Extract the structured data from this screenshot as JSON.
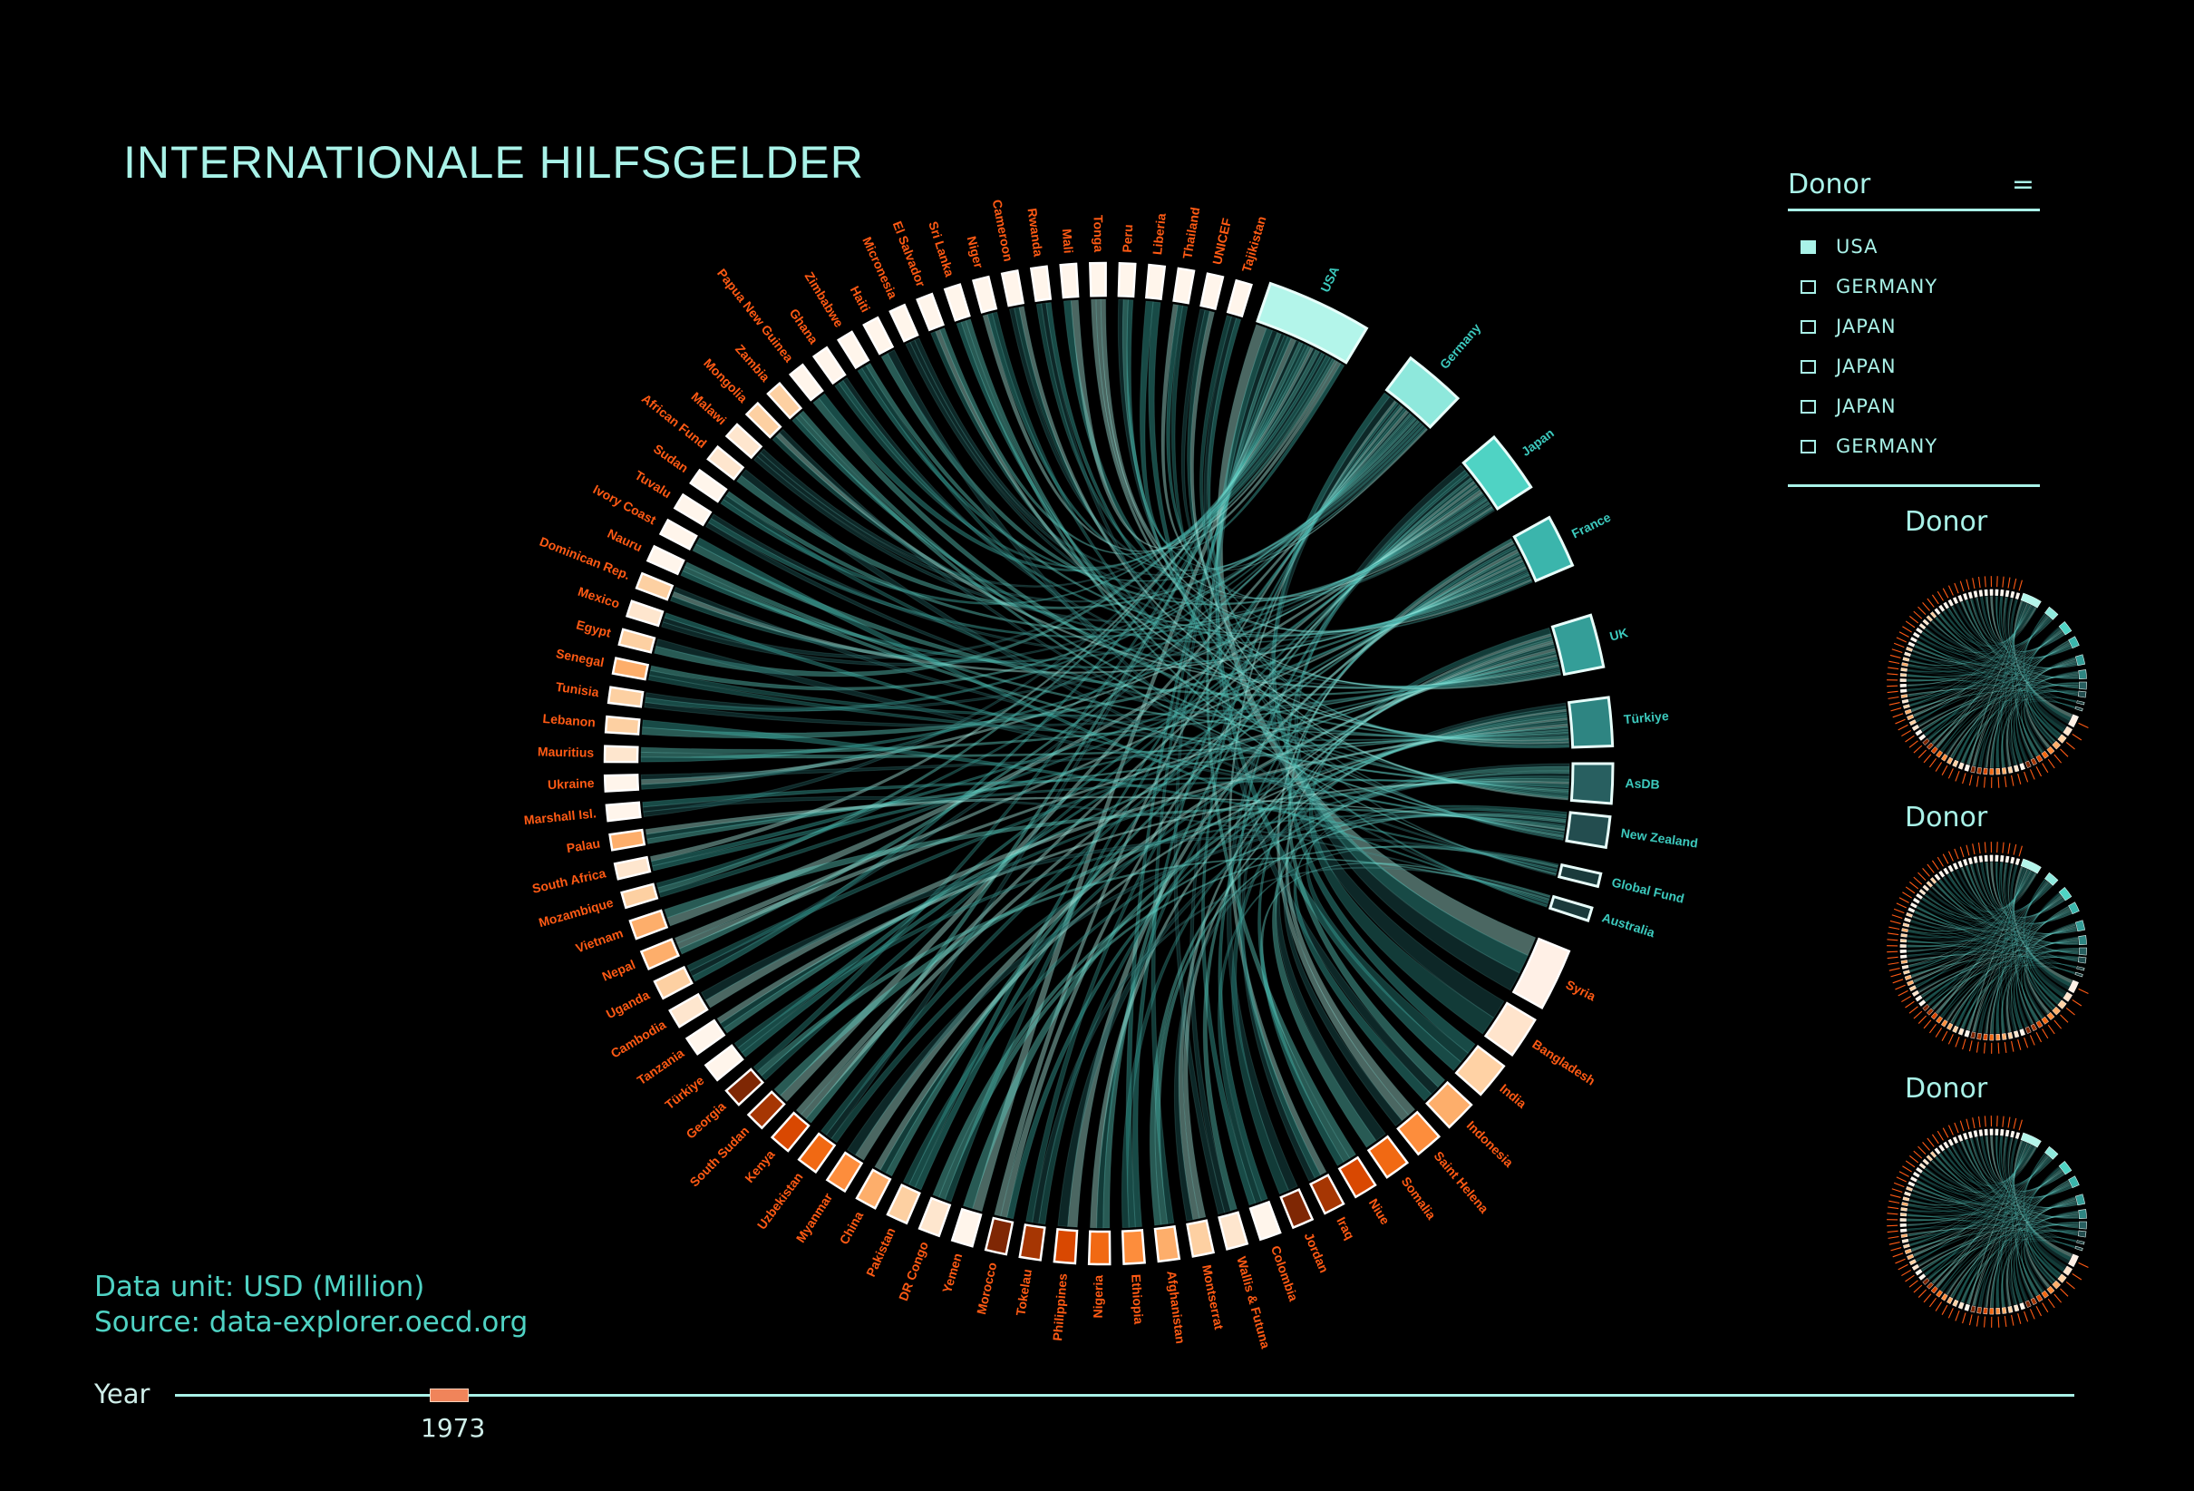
{
  "title": "INTERNATIONALE HILFSGELDER",
  "legend": {
    "header": "Donor",
    "menu_icon": "hamburger-menu-icon",
    "menu_glyph": "=",
    "items": [
      {
        "label": "USA",
        "checked": true
      },
      {
        "label": "GERMANY",
        "checked": false
      },
      {
        "label": "JAPAN",
        "checked": false
      },
      {
        "label": "JAPAN",
        "checked": false
      },
      {
        "label": "JAPAN",
        "checked": false
      },
      {
        "label": "GERMANY",
        "checked": false
      }
    ]
  },
  "mini_charts": [
    {
      "title": "Donor"
    },
    {
      "title": "Donor"
    },
    {
      "title": "Donor"
    }
  ],
  "footer": {
    "unit": "Data unit: USD (Million)",
    "source": "Source: data-explorer.oecd.org"
  },
  "year_slider": {
    "label": "Year",
    "value": "1973",
    "position_fraction": 0.14
  },
  "colors": {
    "donor_label": "#3cc9bd",
    "recipient_label": "#ff5a14",
    "chord": [
      "#b3f5ea",
      "#5fd6c8",
      "#3ab0a6",
      "#2b8c86",
      "#1f5e5c"
    ],
    "recipient_palette": [
      "#fff5eb",
      "#fee6ce",
      "#fdd0a2",
      "#fdae6b",
      "#fd8d3c",
      "#f16913",
      "#d94801",
      "#a63603",
      "#7f2704"
    ]
  },
  "chart_data": {
    "type": "chord",
    "title": "INTERNATIONALE HILFSGELDER",
    "unit": "USD (Million)",
    "donors": [
      {
        "name": "USA",
        "value": 12,
        "color": "#b3f5ea"
      },
      {
        "name": "Germany",
        "value": 7,
        "color": "#8ee8dc"
      },
      {
        "name": "Japan",
        "value": 7,
        "color": "#4fd3c4"
      },
      {
        "name": "France",
        "value": 6,
        "color": "#3bb5ac"
      },
      {
        "name": "UK",
        "value": 6,
        "color": "#349e98"
      },
      {
        "name": "Türkiye",
        "value": 5.5,
        "color": "#2e8582"
      },
      {
        "name": "AsDB",
        "value": 4.5,
        "color": "#285f60"
      },
      {
        "name": "New Zealand",
        "value": 3.5,
        "color": "#234d4f"
      },
      {
        "name": "Global Fund",
        "value": 1.5,
        "color": "#1a3a3b"
      },
      {
        "name": "Australia",
        "value": 1.5,
        "color": "#1a3a3b"
      }
    ],
    "recipients": [
      {
        "name": "Syria",
        "value": 6,
        "color": "#fff0e6"
      },
      {
        "name": "Bangladesh",
        "value": 4,
        "color": "#ffe4cc"
      },
      {
        "name": "India",
        "value": 3.5,
        "color": "#ffd2a5"
      },
      {
        "name": "Indonesia",
        "value": 3,
        "color": "#fdae6b"
      },
      {
        "name": "Saint Helena",
        "value": 2.6,
        "color": "#fd8d3c"
      },
      {
        "name": "Somalia",
        "value": 2.4,
        "color": "#f16913"
      },
      {
        "name": "Niue",
        "value": 2.2,
        "color": "#d94801"
      },
      {
        "name": "Iraq",
        "value": 2,
        "color": "#a63603"
      },
      {
        "name": "Jordan",
        "value": 2,
        "color": "#7f2704"
      },
      {
        "name": "Colombia",
        "value": 2,
        "color": "#fff5eb"
      },
      {
        "name": "Wallis & Futuna",
        "value": 2,
        "color": "#fee6ce"
      },
      {
        "name": "Montserrat",
        "value": 2,
        "color": "#fdd0a2"
      },
      {
        "name": "Afghanistan",
        "value": 2,
        "color": "#fdae6b"
      },
      {
        "name": "Ethiopia",
        "value": 2,
        "color": "#fd8d3c"
      },
      {
        "name": "Nigeria",
        "value": 2,
        "color": "#f16913"
      },
      {
        "name": "Philippines",
        "value": 2,
        "color": "#d94801"
      },
      {
        "name": "Tokelau",
        "value": 2,
        "color": "#a63603"
      },
      {
        "name": "Morocco",
        "value": 2,
        "color": "#7f2704"
      },
      {
        "name": "Yemen",
        "value": 2,
        "color": "#fff5eb"
      },
      {
        "name": "DR Congo",
        "value": 2,
        "color": "#fee6ce"
      },
      {
        "name": "Pakistan",
        "value": 2,
        "color": "#fdd0a2"
      },
      {
        "name": "China",
        "value": 2,
        "color": "#fdae6b"
      },
      {
        "name": "Myanmar",
        "value": 2,
        "color": "#fd8d3c"
      },
      {
        "name": "Uzbekistan",
        "value": 2,
        "color": "#f16913"
      },
      {
        "name": "Kenya",
        "value": 2,
        "color": "#d94801"
      },
      {
        "name": "South Sudan",
        "value": 1.8,
        "color": "#a63603"
      },
      {
        "name": "Georgia",
        "value": 1.8,
        "color": "#7f2704"
      },
      {
        "name": "Türkiye",
        "value": 1.8,
        "color": "#fff5eb"
      },
      {
        "name": "Tanzania",
        "value": 1.8,
        "color": "#fff5eb"
      },
      {
        "name": "Cambodia",
        "value": 1.8,
        "color": "#fee6ce"
      },
      {
        "name": "Uganda",
        "value": 1.8,
        "color": "#fdd0a2"
      },
      {
        "name": "Nepal",
        "value": 1.8,
        "color": "#fdae6b"
      },
      {
        "name": "Vietnam",
        "value": 1.8,
        "color": "#fdae6b"
      },
      {
        "name": "Mozambique",
        "value": 1.5,
        "color": "#fdd0a2"
      },
      {
        "name": "South Africa",
        "value": 1.5,
        "color": "#fee6ce"
      },
      {
        "name": "Palau",
        "value": 1.5,
        "color": "#fdae6b"
      },
      {
        "name": "Marshall Isl.",
        "value": 1.5,
        "color": "#fff5eb"
      },
      {
        "name": "Ukraine",
        "value": 1.5,
        "color": "#fff5eb"
      },
      {
        "name": "Mauritius",
        "value": 1.5,
        "color": "#fee6ce"
      },
      {
        "name": "Lebanon",
        "value": 1.5,
        "color": "#fdd0a2"
      },
      {
        "name": "Tunisia",
        "value": 1.5,
        "color": "#fdd0a2"
      },
      {
        "name": "Senegal",
        "value": 1.5,
        "color": "#fdae6b"
      },
      {
        "name": "Egypt",
        "value": 1.5,
        "color": "#fdd0a2"
      },
      {
        "name": "Mexico",
        "value": 1.5,
        "color": "#fee6ce"
      },
      {
        "name": "Dominican Rep.",
        "value": 1.5,
        "color": "#fdd0a2"
      },
      {
        "name": "Nauru",
        "value": 1.5,
        "color": "#fff5eb"
      },
      {
        "name": "Ivory Coast",
        "value": 1.5,
        "color": "#fff5eb"
      },
      {
        "name": "Tuvalu",
        "value": 1.5,
        "color": "#fff5eb"
      },
      {
        "name": "Sudan",
        "value": 1.5,
        "color": "#fff5eb"
      },
      {
        "name": "African Fund",
        "value": 1.5,
        "color": "#fee6ce"
      },
      {
        "name": "Malawi",
        "value": 1.5,
        "color": "#fee6ce"
      },
      {
        "name": "Mongolia",
        "value": 1.5,
        "color": "#fdd0a2"
      },
      {
        "name": "Zambia",
        "value": 1.5,
        "color": "#fdd0a2"
      },
      {
        "name": "Papua New Guinea",
        "value": 1.5,
        "color": "#fff5eb"
      },
      {
        "name": "Ghana",
        "value": 1.5,
        "color": "#fff5eb"
      },
      {
        "name": "Zimbabwe",
        "value": 1.5,
        "color": "#fff5eb"
      },
      {
        "name": "Haiti",
        "value": 1.5,
        "color": "#fff5eb"
      },
      {
        "name": "Micronesia",
        "value": 1.5,
        "color": "#fff5eb"
      },
      {
        "name": "El Salvador",
        "value": 1.5,
        "color": "#fff5eb"
      },
      {
        "name": "Sri Lanka",
        "value": 1.5,
        "color": "#fff5eb"
      },
      {
        "name": "Niger",
        "value": 1.5,
        "color": "#fff5eb"
      },
      {
        "name": "Cameroon",
        "value": 1.5,
        "color": "#fff5eb"
      },
      {
        "name": "Rwanda",
        "value": 1.5,
        "color": "#fff5eb"
      },
      {
        "name": "Mali",
        "value": 1.5,
        "color": "#fff5eb"
      },
      {
        "name": "Tonga",
        "value": 1.5,
        "color": "#fff5eb"
      },
      {
        "name": "Peru",
        "value": 1.5,
        "color": "#fff5eb"
      },
      {
        "name": "Liberia",
        "value": 1.5,
        "color": "#fff5eb"
      },
      {
        "name": "Thailand",
        "value": 1.5,
        "color": "#fff5eb"
      },
      {
        "name": "UNICEF",
        "value": 1.5,
        "color": "#fff5eb"
      },
      {
        "name": "Tajikistan",
        "value": 1.5,
        "color": "#fff5eb"
      }
    ]
  }
}
